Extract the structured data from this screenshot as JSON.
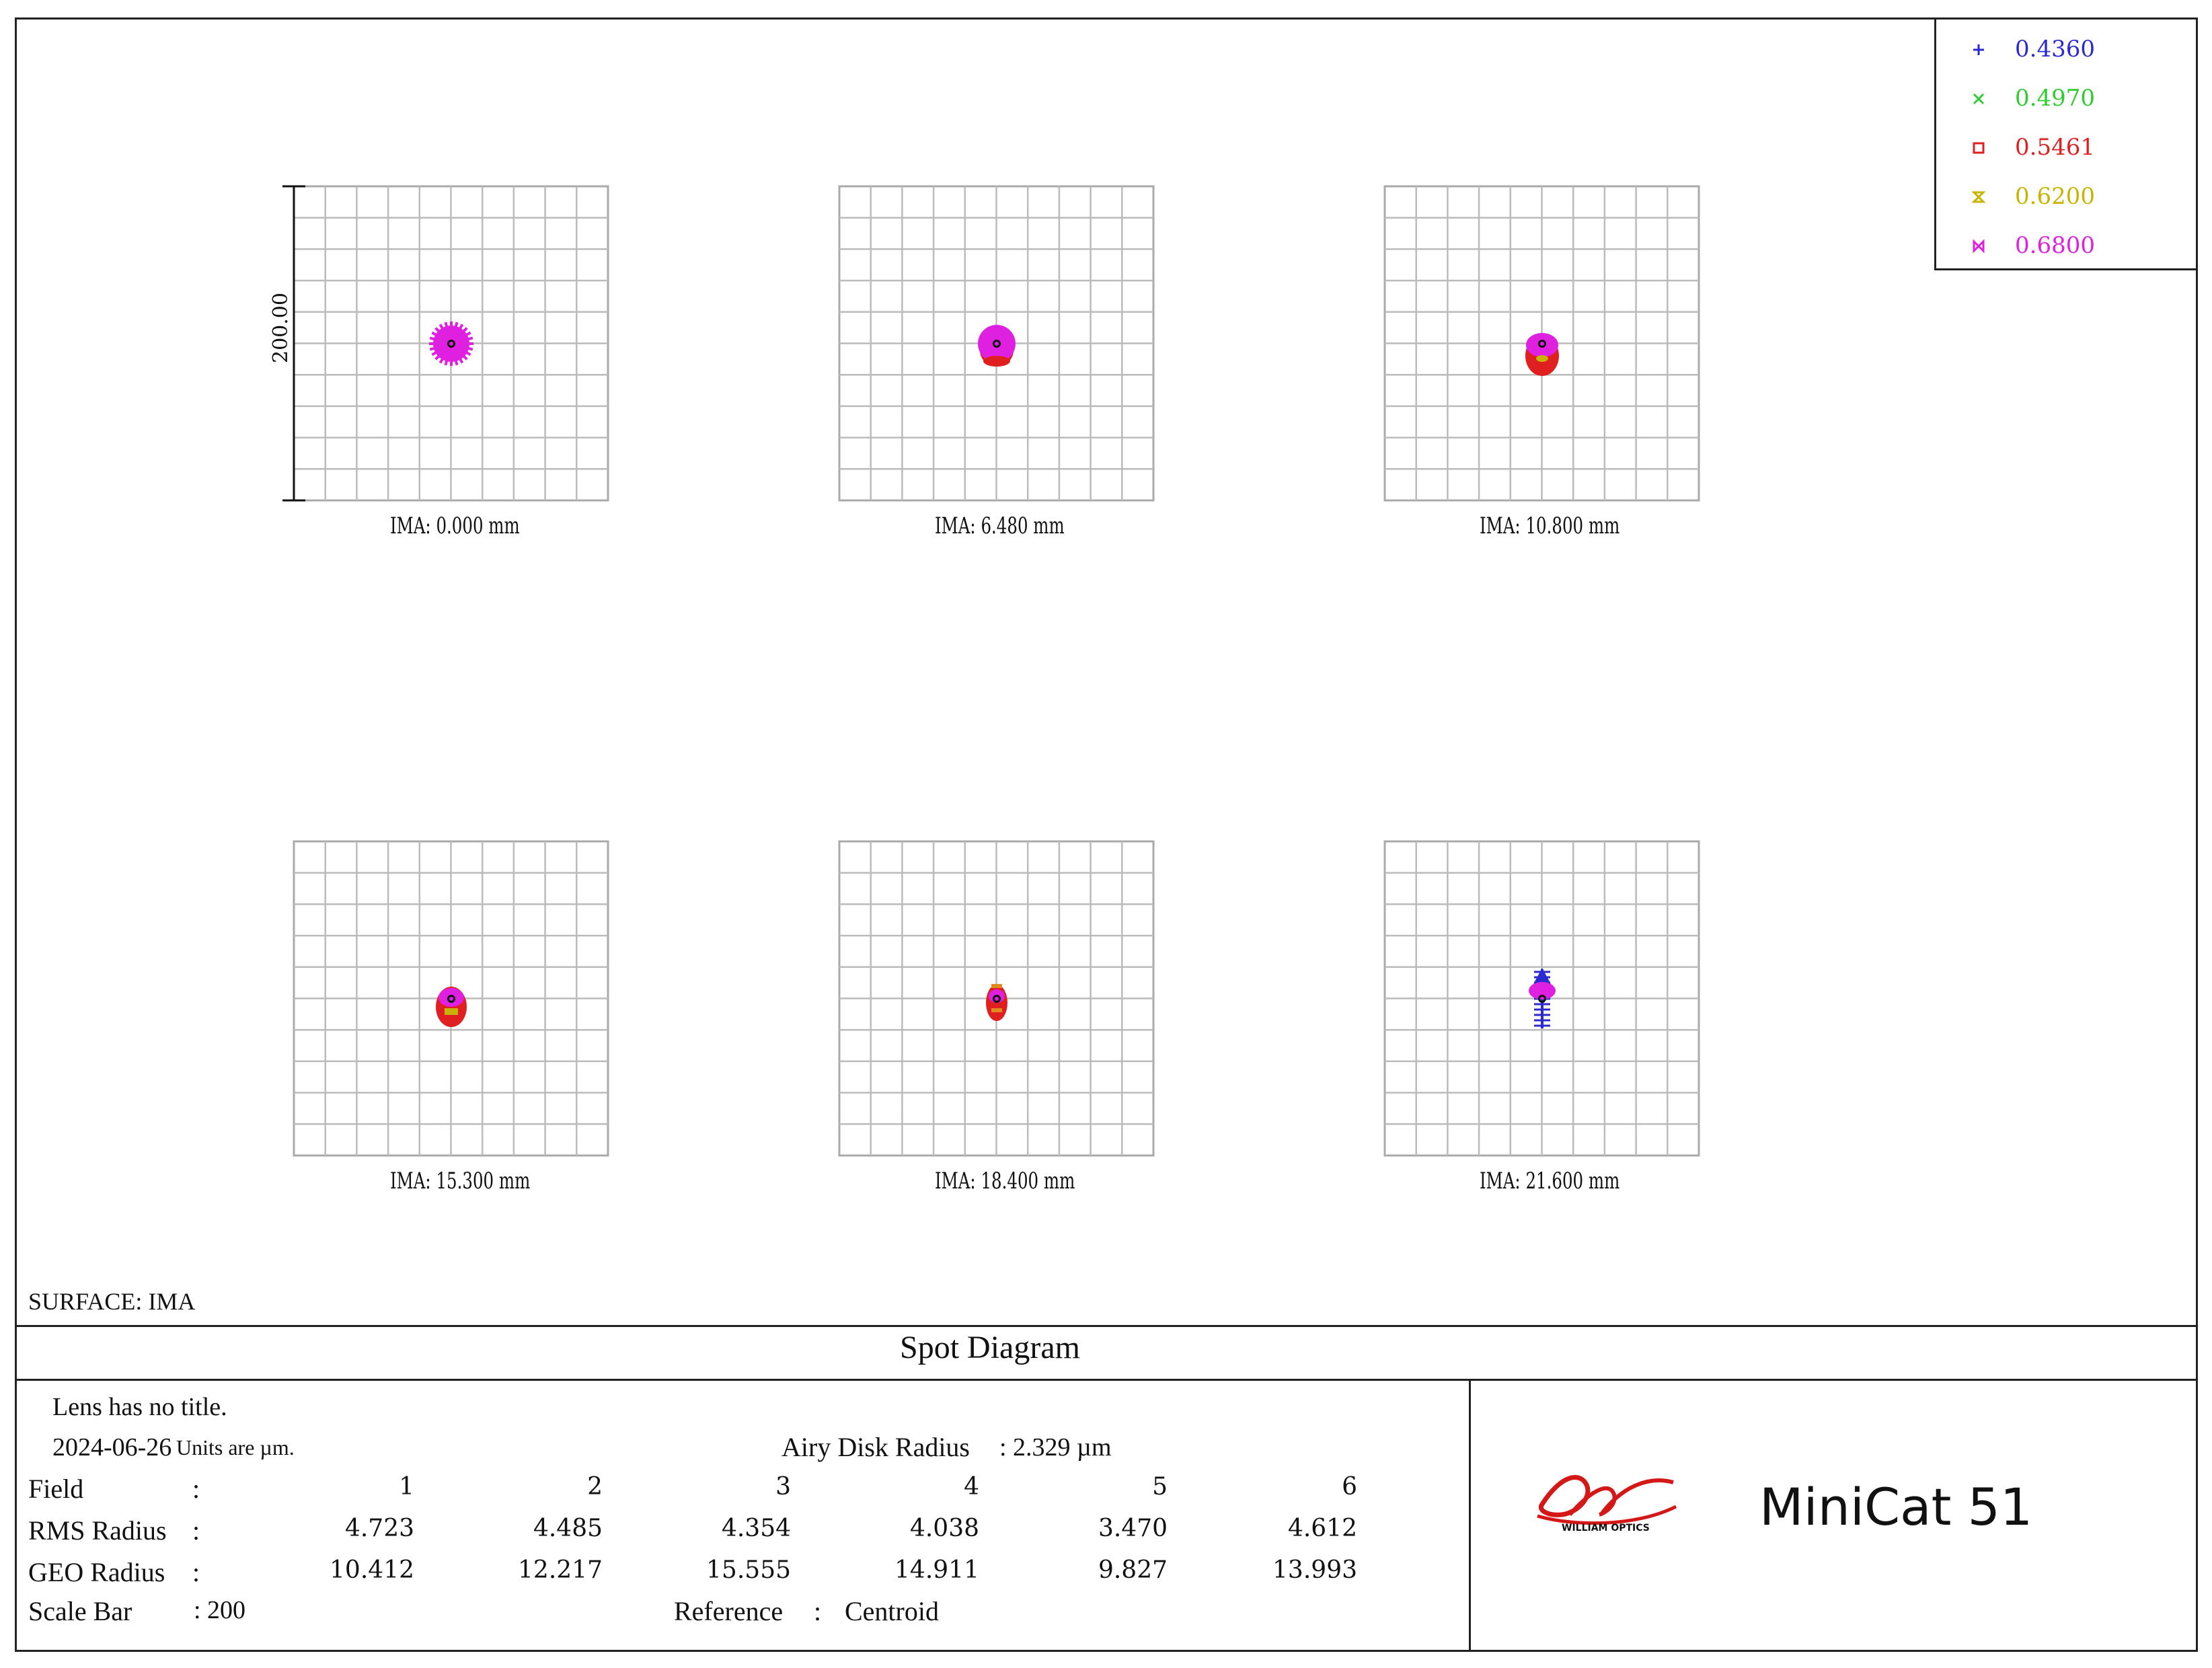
{
  "legend": [
    {
      "label": "0.4360",
      "color": "#2a2ad0",
      "marker": "plus"
    },
    {
      "label": "0.4970",
      "color": "#2ecc2e",
      "marker": "x"
    },
    {
      "label": "0.5461",
      "color": "#e02020",
      "marker": "square"
    },
    {
      "label": "0.6200",
      "color": "#c8b400",
      "marker": "hourglass"
    },
    {
      "label": "0.6800",
      "color": "#e020e0",
      "marker": "bowtie"
    }
  ],
  "scale_label": "200.00",
  "fields": [
    {
      "label": "IMA:  0.000 mm",
      "shape": "round-magenta"
    },
    {
      "label": "IMA:  6.480 mm",
      "shape": "round-red-bottom"
    },
    {
      "label": "IMA:  10.800 mm",
      "shape": "oval-red"
    },
    {
      "label": "IMA:  15.300 mm",
      "shape": "oval-red-yellow"
    },
    {
      "label": "IMA:  18.400 mm",
      "shape": "small-red-orange"
    },
    {
      "label": "IMA:  21.600 mm",
      "shape": "blue-vertical"
    }
  ],
  "surface": "SURFACE: IMA",
  "title": "Spot Diagram",
  "info": {
    "lens_title": "Lens has no title.",
    "date": "2024-06-26",
    "units": "Units are µm.",
    "airy_label": "Airy Disk Radius",
    "airy_value": ":  2.329 µm",
    "field_label": "Field",
    "field_colon": ":",
    "field_values": [
      "1",
      "2",
      "3",
      "4",
      "5",
      "6"
    ],
    "rms_label": "RMS Radius",
    "rms_colon": ":",
    "rms_values": [
      "4.723",
      "4.485",
      "4.354",
      "4.038",
      "3.470",
      "4.612"
    ],
    "geo_label": "GEO Radius",
    "geo_colon": ":",
    "geo_values": [
      "10.412",
      "12.217",
      "15.555",
      "14.911",
      "9.827",
      "13.993"
    ],
    "scale_label": "Scale Bar",
    "scale_value": ":  200",
    "reference_label": "Reference",
    "reference_colon": ":",
    "reference_value": "Centroid"
  },
  "logo": {
    "brand_text": "WILLIAM OPTICS",
    "product": "MiniCat 51"
  }
}
